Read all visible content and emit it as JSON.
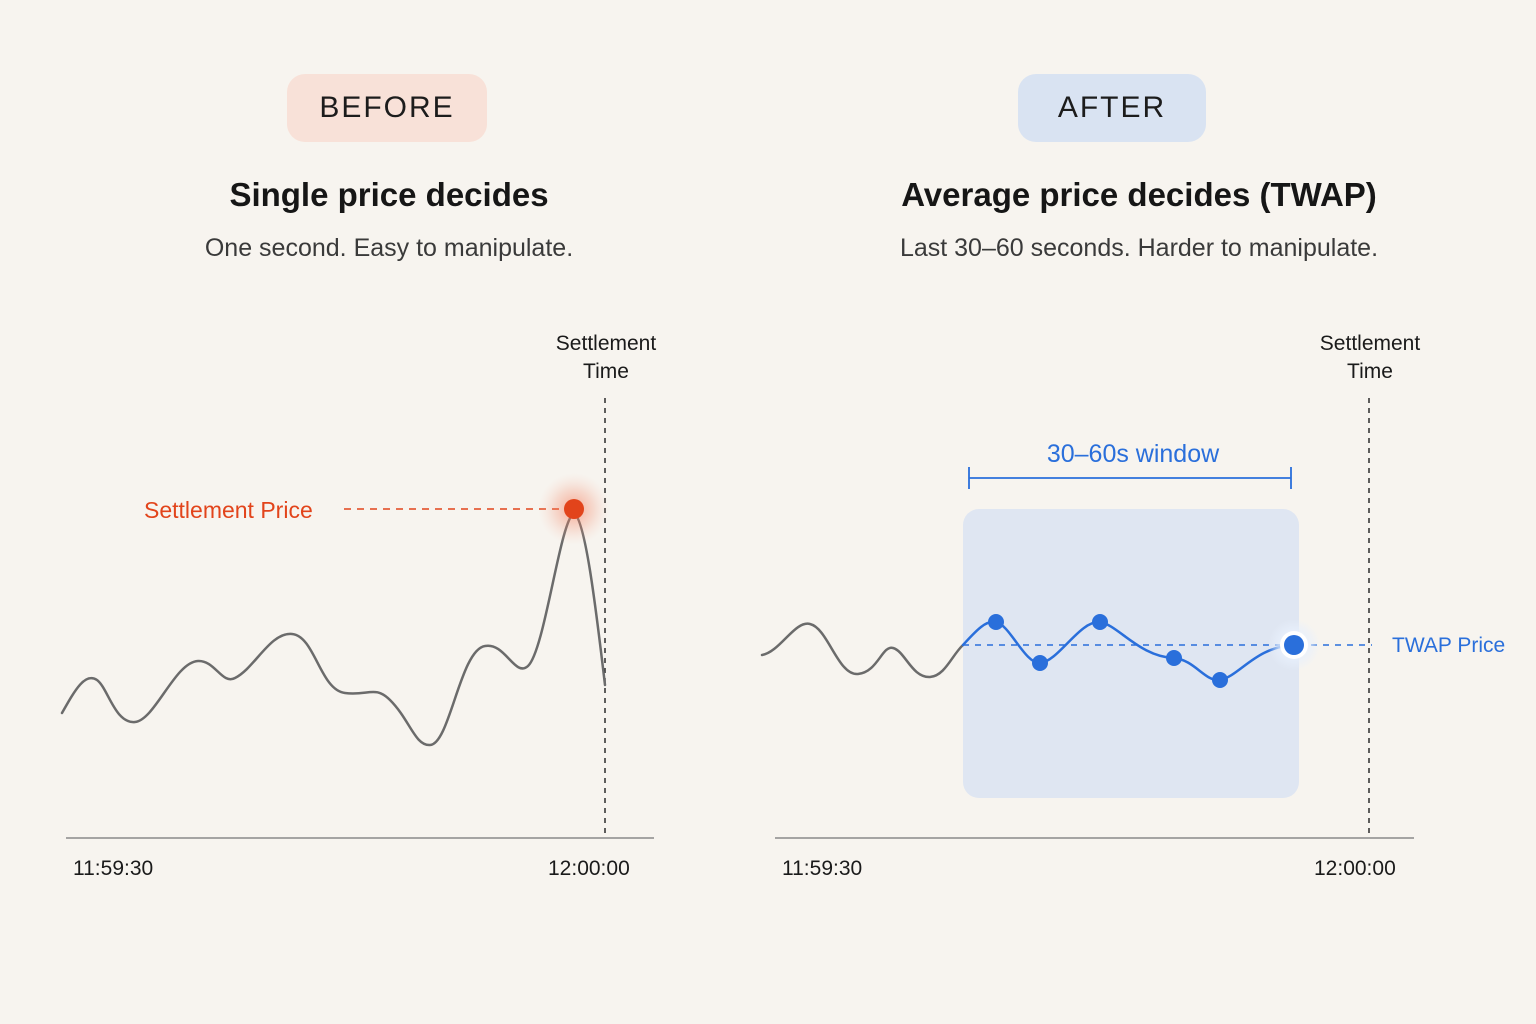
{
  "before": {
    "badge": "BEFORE",
    "title": "Single price decides",
    "subtitle": "One second. Easy to manipulate.",
    "settlement_time_label_line1": "Settlement",
    "settlement_time_label_line2": "Time",
    "settlement_price_label": "Settlement Price",
    "x_start": "11:59:30",
    "x_end": "12:00:00"
  },
  "after": {
    "badge": "AFTER",
    "title": "Average price decides (TWAP)",
    "subtitle": "Last 30–60 seconds. Harder to manipulate.",
    "settlement_time_label_line1": "Settlement",
    "settlement_time_label_line2": "Time",
    "window_label": "30–60s window",
    "twap_label": "TWAP Price",
    "x_start": "11:59:30",
    "x_end": "12:00:00"
  },
  "colors": {
    "background": "#f7f4ef",
    "before_badge": "#f8e1d8",
    "after_badge": "#d9e3f2",
    "settlement_red": "#e2441b",
    "twap_blue": "#2a6fdb",
    "price_line": "#6b6b6b",
    "window_fill": "#dfe6f2"
  }
}
